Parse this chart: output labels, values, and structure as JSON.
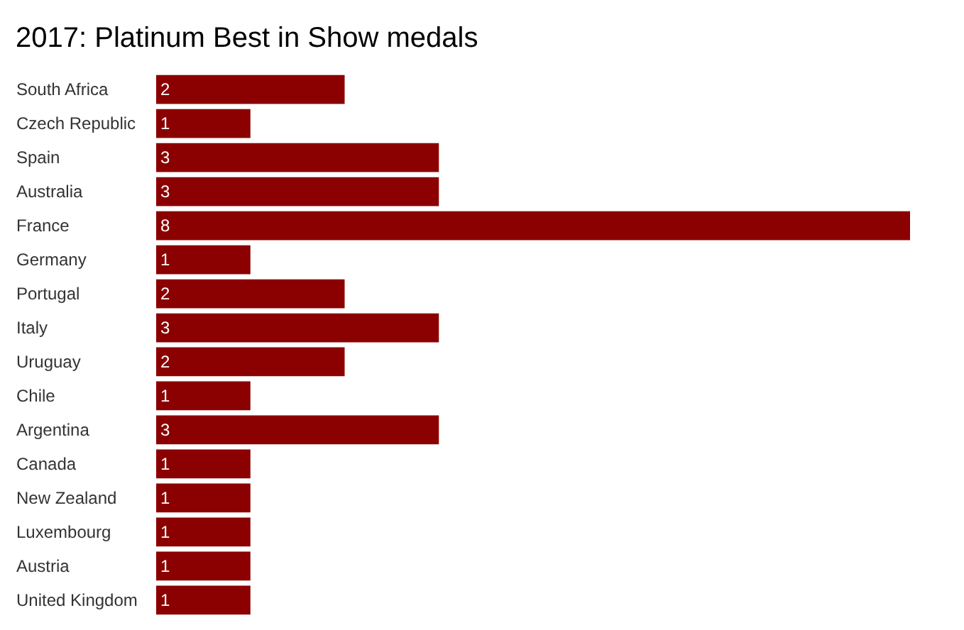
{
  "chart_data": {
    "type": "bar",
    "orientation": "horizontal",
    "title": "2017: Platinum Best in Show medals",
    "categories": [
      "South Africa",
      "Czech Republic",
      "Spain",
      "Australia",
      "France",
      "Germany",
      "Portugal",
      "Italy",
      "Uruguay",
      "Chile",
      "Argentina",
      "Canada",
      "New Zealand",
      "Luxembourg",
      "Austria",
      "United Kingdom"
    ],
    "values": [
      2,
      1,
      3,
      3,
      8,
      1,
      2,
      3,
      2,
      1,
      3,
      1,
      1,
      1,
      1,
      1
    ],
    "color": "#8b0000",
    "data_labels": true,
    "grid": false,
    "tick_labels": "y"
  }
}
